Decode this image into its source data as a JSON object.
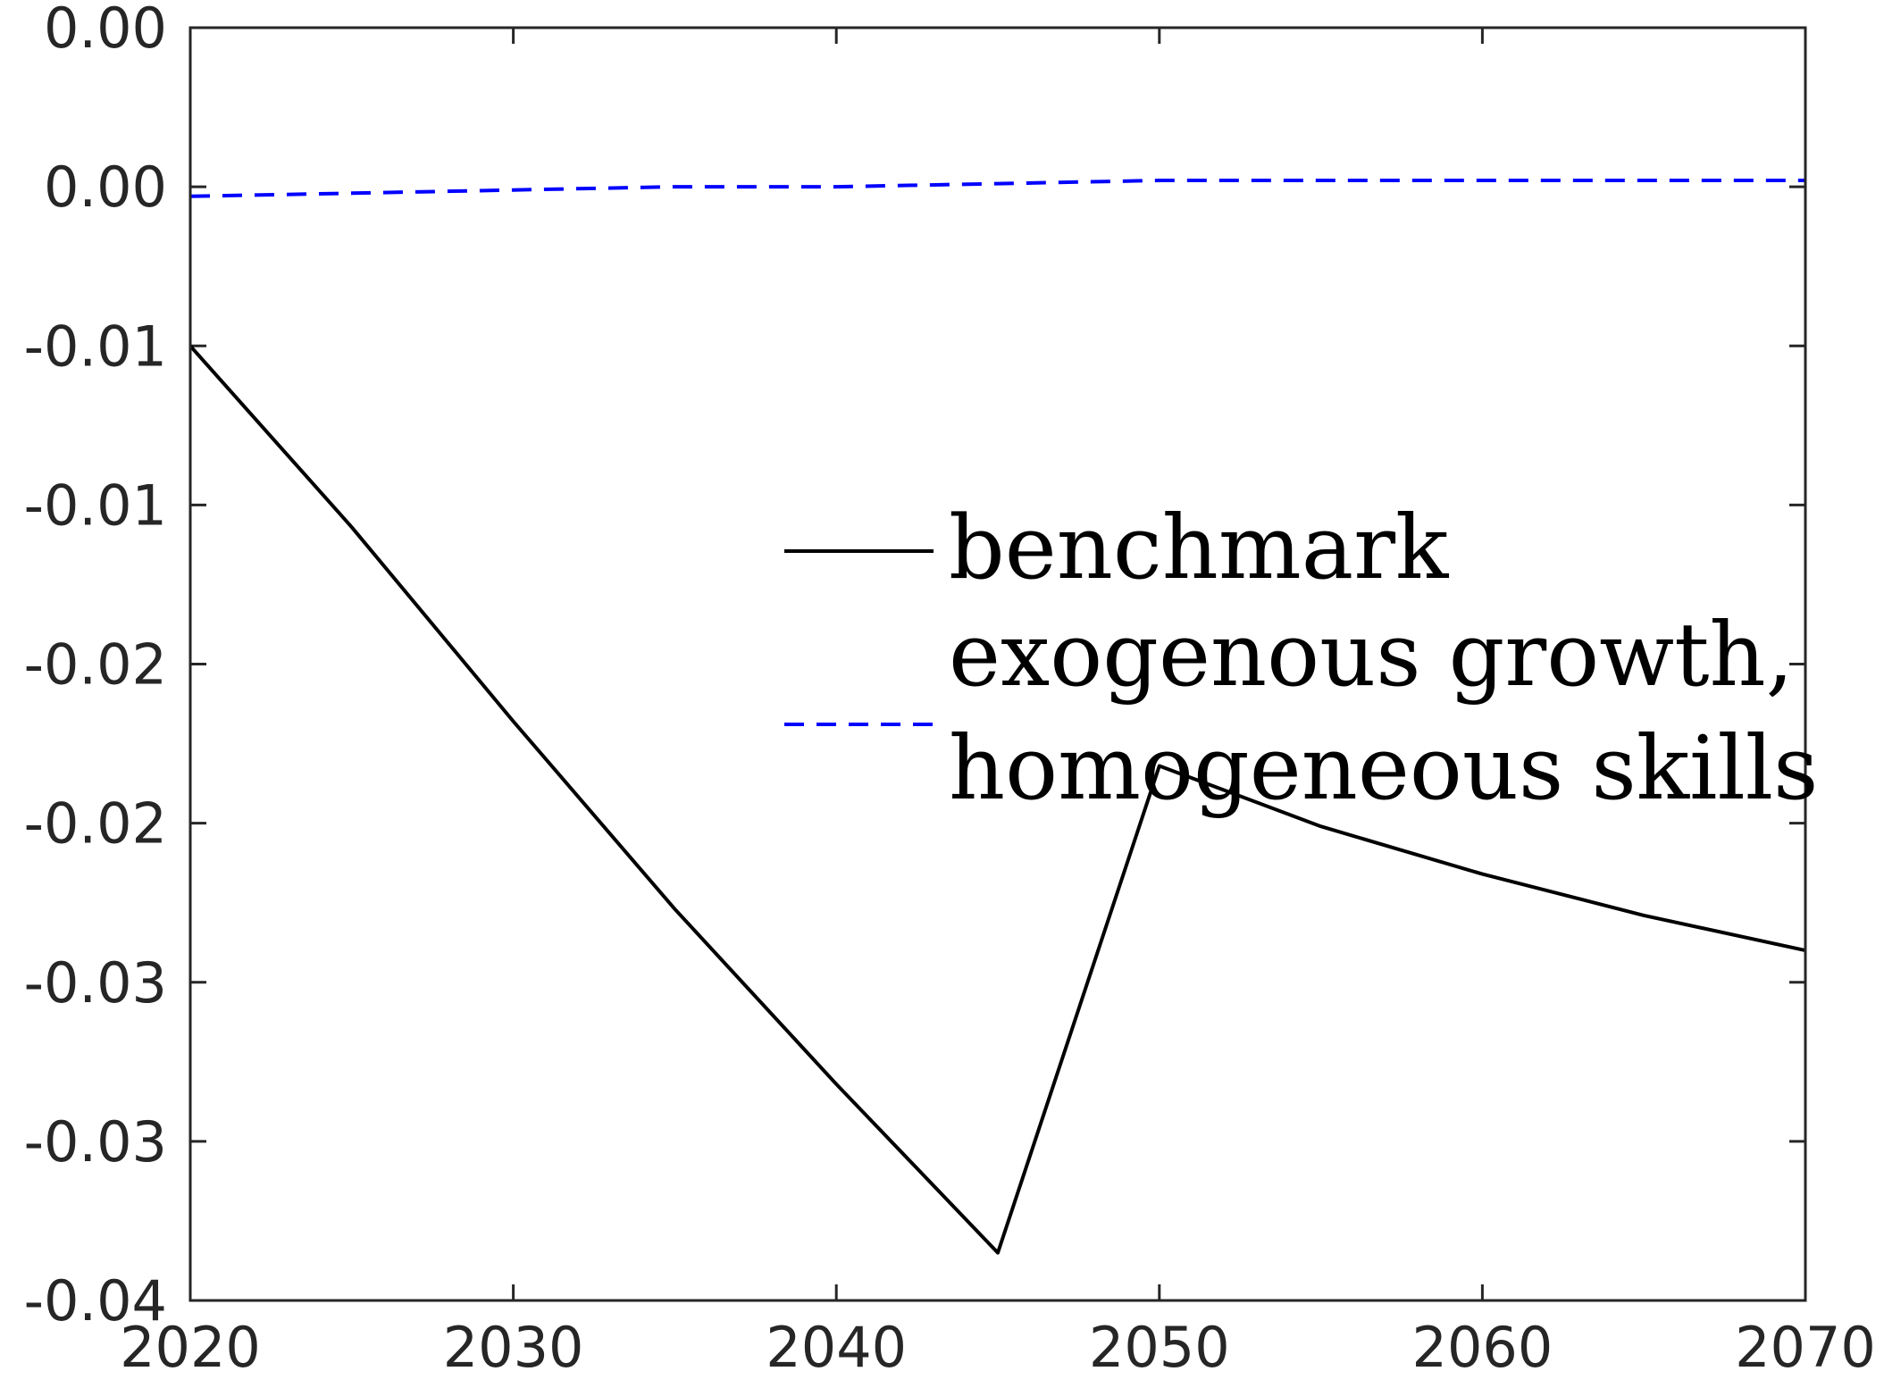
{
  "chart_data": {
    "type": "line",
    "title": "",
    "xlabel": "",
    "ylabel": "",
    "xlim": [
      2020,
      2070
    ],
    "ylim": [
      -0.04,
      0.0
    ],
    "xticks": [
      2020,
      2030,
      2040,
      2050,
      2060,
      2070
    ],
    "xtick_labels": [
      "2020",
      "2030",
      "2040",
      "2050",
      "2060",
      "2070"
    ],
    "yticks": [
      -0.04,
      -0.035,
      -0.03,
      -0.025,
      -0.02,
      -0.015,
      -0.01,
      -0.005,
      0.0
    ],
    "ytick_labels": [
      "-0.04",
      "-0.03",
      "-0.03",
      "-0.02",
      "-0.02",
      "-0.01",
      "-0.01",
      "0.00",
      "0.00"
    ],
    "grid": false,
    "legend_position": "center-right",
    "series": [
      {
        "name": "benchmark",
        "color": "#000000",
        "style": "solid",
        "x": [
          2020,
          2025,
          2030,
          2035,
          2040,
          2045,
          2050,
          2055,
          2060,
          2065,
          2070
        ],
        "y": [
          -0.01,
          -0.0157,
          -0.0218,
          -0.0277,
          -0.0332,
          -0.0385,
          -0.0232,
          -0.0251,
          -0.0266,
          -0.0279,
          -0.029
        ]
      },
      {
        "name": "exogenous growth, homogeneous skills",
        "name_lines": [
          "exogenous growth,",
          "homogeneous skills"
        ],
        "color": "#0000ff",
        "style": "dashed",
        "x": [
          2020,
          2025,
          2030,
          2035,
          2040,
          2045,
          2050,
          2055,
          2060,
          2065,
          2070
        ],
        "y": [
          -0.0053,
          -0.0052,
          -0.0051,
          -0.005,
          -0.005,
          -0.0049,
          -0.0048,
          -0.0048,
          -0.0048,
          -0.0048,
          -0.0048
        ]
      }
    ]
  }
}
